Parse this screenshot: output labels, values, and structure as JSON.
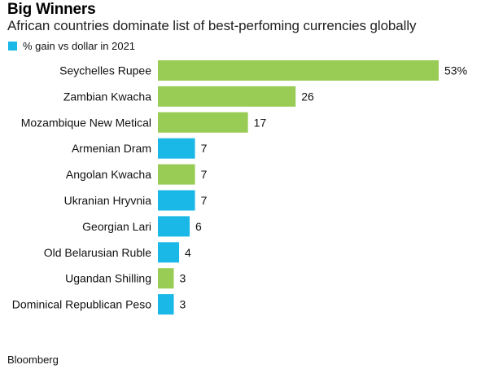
{
  "colors": {
    "africa": "#99cc55",
    "other": "#1ab8e6"
  },
  "legend": {
    "label": "% gain vs dollar in 2021",
    "color": "#1ab8e6"
  },
  "source": "Bloomberg",
  "chart_data": {
    "type": "bar",
    "orientation": "horizontal",
    "title": "Big Winners",
    "subtitle": "African countries dominate list of best-perfoming currencies globally",
    "categories": [
      "Seychelles Rupee",
      "Zambian Kwacha",
      "Mozambique New Metical",
      "Armenian Dram",
      "Angolan Kwacha",
      "Ukranian Hryvnia",
      "Georgian Lari",
      "Old Belarusian Ruble",
      "Ugandan Shilling",
      "Dominical Republican Peso"
    ],
    "values": [
      53,
      26,
      17,
      7,
      7,
      7,
      6,
      4,
      3,
      3
    ],
    "value_labels": [
      "53%",
      "26",
      "17",
      "7",
      "7",
      "7",
      "6",
      "4",
      "3",
      "3"
    ],
    "bar_groups": [
      "africa",
      "africa",
      "africa",
      "other",
      "africa",
      "other",
      "other",
      "other",
      "africa",
      "other"
    ],
    "xlim": [
      0,
      53
    ],
    "grid": false,
    "legend_position": "top-left"
  }
}
